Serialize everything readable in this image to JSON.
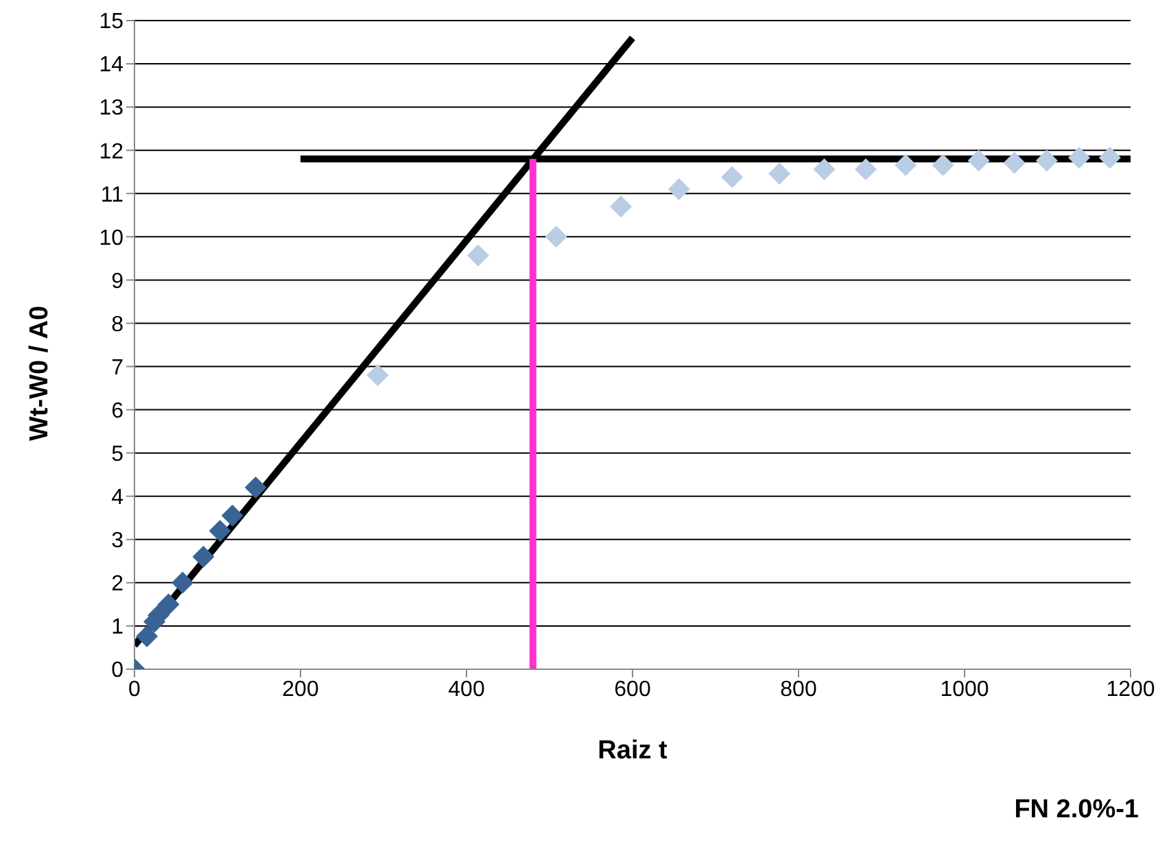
{
  "chart_data": {
    "type": "scatter",
    "xlabel": "Raiz t",
    "ylabel": "Wt-W0 / A0",
    "annotations": [
      "FN 2.0%-1"
    ],
    "xlim": [
      0,
      1200
    ],
    "xticks": [
      0,
      200,
      400,
      600,
      800,
      1000,
      1200
    ],
    "ylim": [
      0,
      15
    ],
    "yticks": [
      0,
      1,
      2,
      3,
      4,
      5,
      6,
      7,
      8,
      9,
      10,
      11,
      12,
      13,
      14,
      15
    ],
    "grid": "y",
    "series": [
      {
        "type": "scatter",
        "marker": "diamond",
        "color": "#3a6395",
        "x": [
          0,
          15,
          24,
          29,
          41,
          58,
          83,
          103,
          118,
          146
        ],
        "values": [
          0,
          0.76,
          1.1,
          1.25,
          1.5,
          2.0,
          2.6,
          3.2,
          3.55,
          4.2
        ]
      },
      {
        "type": "scatter",
        "marker": "diamond",
        "color": "#b9cde5",
        "x": [
          293,
          414,
          508,
          586,
          656,
          720,
          777,
          831,
          881,
          929,
          974,
          1017,
          1060,
          1099,
          1138,
          1175
        ],
        "values": [
          6.8,
          9.57,
          10.0,
          10.7,
          11.1,
          11.38,
          11.46,
          11.56,
          11.56,
          11.66,
          11.66,
          11.76,
          11.71,
          11.76,
          11.83,
          11.83
        ]
      },
      {
        "type": "line",
        "marker": "none",
        "color": "#000000",
        "x": [
          0,
          600
        ],
        "values": [
          0.55,
          14.6
        ]
      },
      {
        "type": "line",
        "marker": "none",
        "color": "#000000",
        "x": [
          200,
          1200
        ],
        "values": [
          11.8,
          11.8
        ]
      },
      {
        "type": "line",
        "marker": "none",
        "color": "#ff33cc",
        "x": [
          480,
          480
        ],
        "values": [
          0,
          11.8
        ]
      }
    ]
  }
}
